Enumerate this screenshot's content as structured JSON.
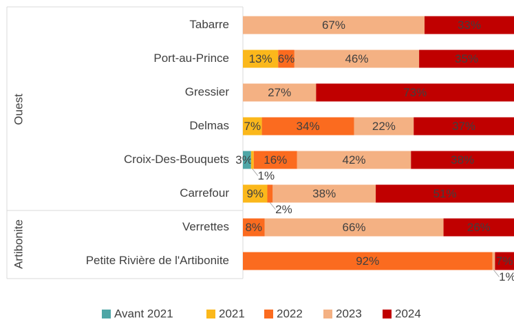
{
  "chart_data": {
    "type": "stacked-bar-horizontal",
    "groups": [
      {
        "name": "Ouest",
        "categories": [
          "Tabarre",
          "Port-au-Prince",
          "Gressier",
          "Delmas",
          "Croix-Des-Bouquets",
          "Carrefour"
        ]
      },
      {
        "name": "Artibonite",
        "categories": [
          "Verrettes",
          "Petite Rivière de l'Artibonite"
        ]
      }
    ],
    "xlim": [
      0,
      100
    ],
    "series": [
      {
        "name": "Avant 2021",
        "color": "#4ea6a6",
        "values": [
          null,
          null,
          null,
          null,
          3,
          null,
          null,
          null
        ],
        "value_labels": [
          null,
          null,
          null,
          null,
          "3%",
          null,
          null,
          null
        ]
      },
      {
        "name": "2021",
        "color": "#fbb81b",
        "values": [
          null,
          13,
          null,
          7,
          1,
          9,
          null,
          null
        ],
        "value_labels": [
          null,
          "13%",
          null,
          "7%",
          "1%",
          "9%",
          null,
          null
        ]
      },
      {
        "name": "2022",
        "color": "#fb6b1f",
        "values": [
          null,
          6,
          null,
          34,
          16,
          2,
          8,
          92
        ],
        "value_labels": [
          null,
          "6%",
          null,
          "34%",
          "16%",
          "2%",
          "8%",
          "92%"
        ]
      },
      {
        "name": "2023",
        "color": "#f4b183",
        "values": [
          67,
          46,
          27,
          22,
          42,
          38,
          66,
          1
        ],
        "value_labels": [
          "67%",
          "46%",
          "27%",
          "22%",
          "42%",
          "38%",
          "66%",
          "1%"
        ]
      },
      {
        "name": "2024",
        "color": "#c00000",
        "values": [
          33,
          35,
          73,
          37,
          38,
          51,
          26,
          7
        ],
        "value_labels": [
          "33%",
          "35%",
          "73%",
          "37%",
          "38%",
          "51%",
          "26%",
          "7%"
        ]
      }
    ]
  }
}
